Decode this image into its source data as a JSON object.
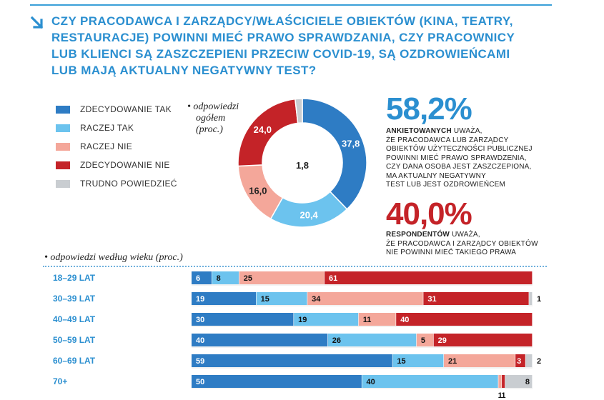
{
  "headline": "CZY PRACODAWCA I ZARZĄDCY/WŁAŚCICIELE OBIEKTÓW (KINA, TEATRY, RESTAURACJE) POWINNI MIEĆ PRAWO SPRAWDZANIA, CZY PRACOWNICY LUB KLIENCI SĄ ZASZCZEPIENI PRZECIW COVID-19, SĄ OZDROWIEŃCAMI LUB MAJĄ AKTUALNY NEGATYWNY TEST?",
  "colors": {
    "accent": "#2b8fd0",
    "decidedly_yes": "#2e7cc4",
    "rather_yes": "#6cc3ee",
    "rather_no": "#f4a79a",
    "decidedly_no": "#c42328",
    "hard_to_say": "#c9cdd1",
    "stat_blue": "#2b8fd0",
    "stat_red": "#c42328"
  },
  "legend": [
    {
      "label": "ZDECYDOWANIE TAK",
      "color": "#2e7cc4"
    },
    {
      "label": "RACZEJ TAK",
      "color": "#6cc3ee"
    },
    {
      "label": "RACZEJ NIE",
      "color": "#f4a79a"
    },
    {
      "label": "ZDECYDOWANIE NIE",
      "color": "#c42328"
    },
    {
      "label": "TRUDNO POWIEDZIEĆ",
      "color": "#c9cdd1"
    }
  ],
  "pie_note": {
    "line1": "odpowiedzi",
    "line2": "ogółem",
    "line3": "(proc.)"
  },
  "stats": [
    {
      "value": "58,2%",
      "bold": "ANKIETOWANYCH",
      "lines": [
        "UWAŻA,",
        "ŻE PRACODAWCA LUB ZARZĄDCY",
        "OBIEKTÓW UŻYTECZNOŚCI PUBLICZNEJ",
        "POWINNI MIEĆ PRAWO SPRAWDZENIA,",
        "CZY DANA OSOBA JEST ZASZCZEPIONA,",
        "MA AKTUALNY NEGATYWNY",
        "TEST LUB JEST OZDROWIEŃCEM"
      ]
    },
    {
      "value": "40,0%",
      "bold": "RESPONDENTÓW",
      "lines": [
        "UWAŻA,",
        "ŻE PRACODAWCA I ZARZĄDCY OBIEKTÓW",
        "NIE POWINNI MIEĆ TAKIEGO PRAWA"
      ]
    }
  ],
  "age_note": "odpowiedzi według wieku (proc.)",
  "chart_data": [
    {
      "type": "pie",
      "variant": "donut",
      "labels": [
        "ZDECYDOWANIE TAK",
        "RACZEJ TAK",
        "RACZEJ NIE",
        "ZDECYDOWANIE NIE",
        "TRUDNO POWIEDZIEĆ"
      ],
      "values": [
        37.8,
        20.4,
        16.0,
        24.0,
        1.8
      ],
      "value_labels": [
        "37,8",
        "20,4",
        "16,0",
        "24,0",
        "1,8"
      ]
    },
    {
      "type": "bar",
      "orientation": "horizontal",
      "stacked": true,
      "categories": [
        "18–29 LAT",
        "30–39 LAT",
        "40–49 LAT",
        "50–59 LAT",
        "60–69 LAT",
        "70+"
      ],
      "series": [
        {
          "name": "ZDECYDOWANIE TAK",
          "values": [
            6,
            19,
            30,
            40,
            59,
            50
          ]
        },
        {
          "name": "RACZEJ TAK",
          "values": [
            8,
            15,
            19,
            26,
            15,
            40
          ]
        },
        {
          "name": "RACZEJ NIE",
          "values": [
            25,
            34,
            11,
            5,
            21,
            1
          ]
        },
        {
          "name": "ZDECYDOWANIE NIE",
          "values": [
            61,
            31,
            40,
            29,
            3,
            1
          ]
        },
        {
          "name": "TRUDNO POWIEDZIEĆ",
          "values": [
            0,
            1,
            0,
            0,
            2,
            8
          ]
        }
      ],
      "xlim": [
        0,
        100
      ]
    }
  ]
}
